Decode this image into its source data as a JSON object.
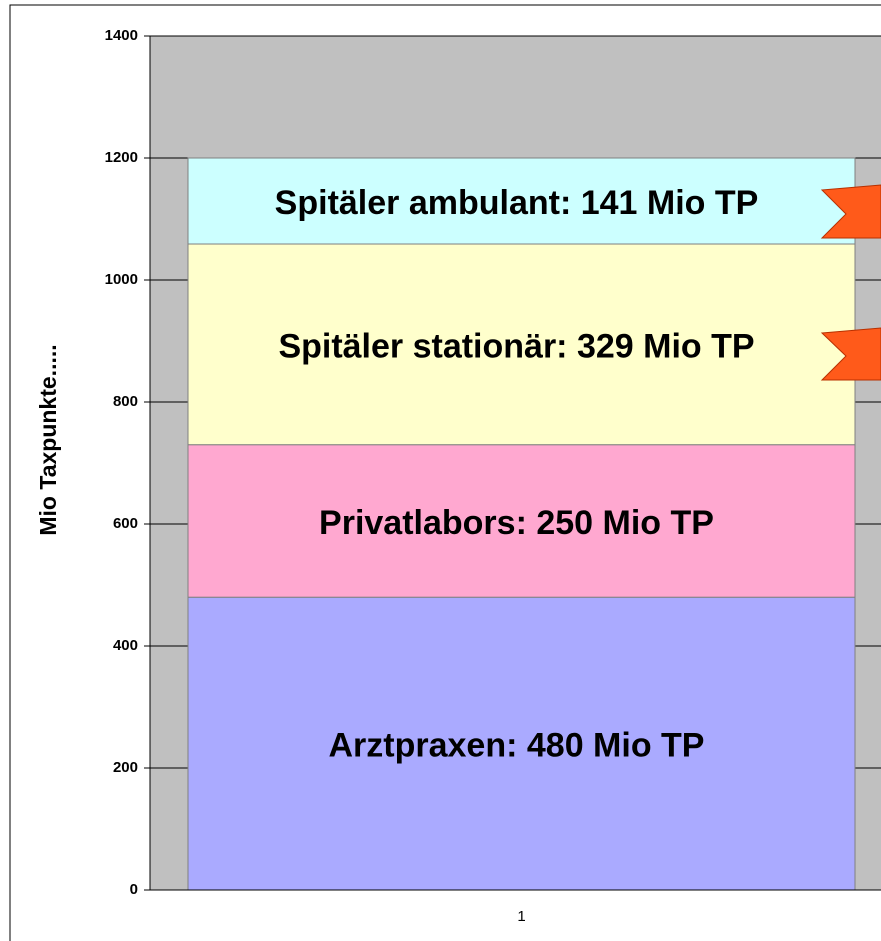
{
  "chart_data": {
    "type": "stacked_bar",
    "y_label": "Mio Taxpunkte.....",
    "categories": [
      "1"
    ],
    "series": [
      {
        "color": "#aaaaff",
        "values": [
          480
        ],
        "value_labels": [
          "Arztpraxen: 480 Mio TP"
        ]
      },
      {
        "color": "#ffa8d0",
        "values": [
          250
        ],
        "value_labels": [
          "Privatlabors: 250 Mio TP"
        ]
      },
      {
        "color": "#ffffcc",
        "values": [
          329
        ],
        "value_labels": [
          "Spitäler stationär: 329 Mio TP"
        ]
      },
      {
        "color": "#ccffff",
        "values": [
          141
        ],
        "value_labels": [
          "Spitäler ambulant: 141 Mio TP"
        ]
      }
    ],
    "ylim": [
      0,
      1400
    ],
    "yticks": [
      0,
      200,
      400,
      600,
      800,
      1000,
      1200,
      1400
    ],
    "grid": true
  }
}
